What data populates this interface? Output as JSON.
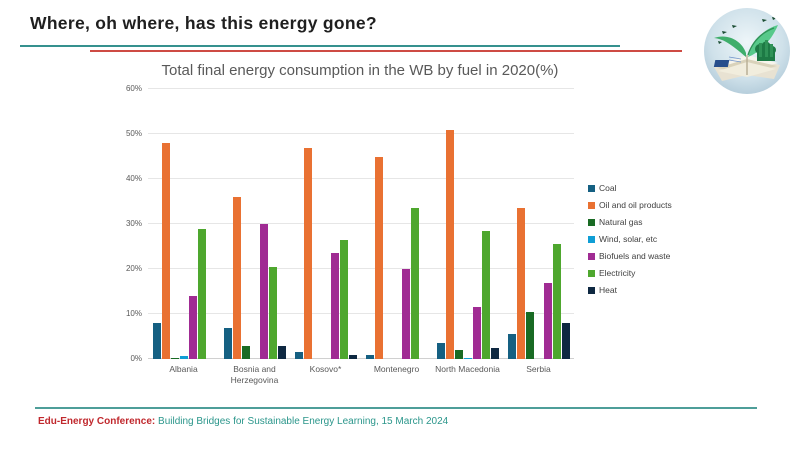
{
  "header": {
    "title": "Where, oh where, has this energy gone?"
  },
  "chart_data": {
    "type": "bar",
    "title": "Total final energy consumption in the WB by fuel in 2020(%)",
    "categories": [
      "Albania",
      "Bosnia and Herzegovina",
      "Kosovo*",
      "Montenegro",
      "North Macedonia",
      "Serbia"
    ],
    "series": [
      {
        "name": "Coal",
        "color": "#156082",
        "values": [
          8,
          7,
          1.5,
          0.8,
          3.5,
          5.5
        ]
      },
      {
        "name": "Oil and oil products",
        "color": "#E97132",
        "values": [
          48,
          36,
          47,
          45,
          51,
          33.5
        ]
      },
      {
        "name": "Natural gas",
        "color": "#196B24",
        "values": [
          0.3,
          3,
          0,
          0,
          2,
          10.5
        ]
      },
      {
        "name": "Wind, solar, etc",
        "color": "#0F9ED5",
        "values": [
          0.7,
          0,
          0,
          0,
          0.3,
          0
        ]
      },
      {
        "name": "Biofuels and waste",
        "color": "#A02B93",
        "values": [
          14,
          30,
          23.5,
          20,
          11.5,
          17
        ]
      },
      {
        "name": "Electricity",
        "color": "#4EA72E",
        "values": [
          29,
          20.5,
          26.5,
          33.5,
          28.5,
          25.5
        ]
      },
      {
        "name": "Heat",
        "color": "#0E2841",
        "values": [
          0,
          3,
          1,
          0,
          2.5,
          8
        ]
      }
    ],
    "ylabel": "",
    "xlabel": "",
    "ylim": [
      0,
      60
    ],
    "ytick_step": 10,
    "ytick_suffix": "%",
    "grid": true,
    "legend_position": "right"
  },
  "footer": {
    "conference": "Edu-Energy Conference:",
    "tagline": " Building Bridges for Sustainable Energy Learning, 15 March 2024"
  },
  "logo": {
    "name": "eco-book-logo"
  },
  "colors": {
    "title_text": "#1f1f1f",
    "chart_title_text": "#595959",
    "axis_text": "#595959",
    "teal_rule": "#35918E",
    "red_rule": "#CE4B44",
    "footer_red": "#C0282D",
    "footer_teal": "#2B968B",
    "gridline": "#E6E6E6"
  }
}
